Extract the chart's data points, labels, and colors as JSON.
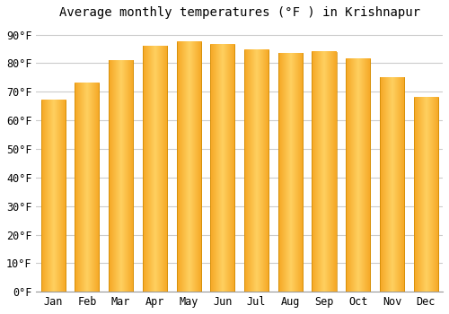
{
  "title": "Average monthly temperatures (°F ) in Krishnapur",
  "months": [
    "Jan",
    "Feb",
    "Mar",
    "Apr",
    "May",
    "Jun",
    "Jul",
    "Aug",
    "Sep",
    "Oct",
    "Nov",
    "Dec"
  ],
  "values": [
    67,
    73,
    81,
    86,
    87.5,
    86.5,
    84.5,
    83.5,
    84,
    81.5,
    75,
    68
  ],
  "bar_color_left": "#F5A623",
  "bar_color_center": "#FFD060",
  "bar_color_right": "#F5A623",
  "background_color": "#FFFFFF",
  "grid_color": "#CCCCCC",
  "title_fontsize": 10,
  "tick_fontsize": 8.5,
  "ylim": [
    0,
    93
  ],
  "yticks": [
    0,
    10,
    20,
    30,
    40,
    50,
    60,
    70,
    80,
    90
  ],
  "ytick_labels": [
    "0°F",
    "10°F",
    "20°F",
    "30°F",
    "40°F",
    "50°F",
    "60°F",
    "70°F",
    "80°F",
    "90°F"
  ]
}
